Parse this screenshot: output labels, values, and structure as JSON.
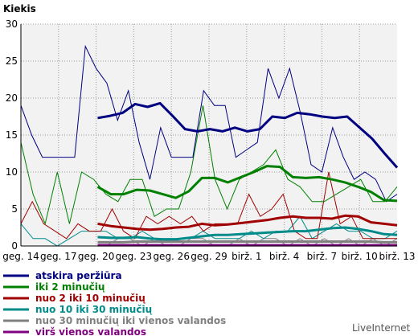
{
  "chart_data": {
    "type": "line",
    "title": "Kiekis",
    "ylim": [
      0,
      30
    ],
    "y_ticks": [
      0,
      5,
      10,
      15,
      20,
      25,
      30
    ],
    "x_tick_labels": [
      "geg. 14",
      "geg. 17",
      "geg. 20",
      "geg. 23",
      "geg. 26",
      "geg. 29",
      "birž. 1",
      "birž. 4",
      "birž. 7",
      "birž. 10",
      "birž. 13"
    ],
    "x_count": 50,
    "grid": true,
    "legend_position": "bottom-left",
    "brand": "LiveInternet",
    "series": [
      {
        "name": "atskira peržiūra",
        "color": "#000080",
        "values": [
          19,
          15,
          12,
          12,
          12,
          12,
          27,
          24,
          22,
          17,
          21,
          14,
          9,
          16,
          12,
          12,
          12,
          21,
          19,
          19,
          12,
          13,
          14,
          24,
          20,
          24,
          18,
          11,
          10,
          16,
          12,
          9,
          10,
          9,
          6,
          7
        ]
      },
      {
        "name": "iki 2 minučių",
        "color": "#008000",
        "values": [
          14,
          7,
          3,
          10,
          3,
          10,
          9,
          7,
          6,
          9,
          9,
          4,
          5,
          5,
          10,
          19,
          9,
          5,
          9,
          10,
          11,
          13,
          9,
          8,
          6,
          6,
          7,
          8,
          9,
          6,
          6,
          8
        ]
      },
      {
        "name": "nuo 2 iki 10 minučių",
        "color": "#a00000",
        "values": [
          3,
          6,
          3,
          2,
          1,
          3,
          2,
          2,
          5,
          2,
          1,
          4,
          3,
          4,
          3,
          4,
          2,
          3,
          3,
          3,
          7,
          4,
          5,
          7,
          2,
          1,
          1,
          10,
          3,
          4,
          1,
          1,
          1,
          1
        ]
      },
      {
        "name": "nuo 10 iki 30 minučių",
        "color": "#008b8b",
        "values": [
          3,
          1,
          1,
          0,
          1,
          2,
          2,
          2,
          1,
          1,
          2,
          1,
          1,
          1,
          1,
          2,
          1,
          1,
          1,
          2,
          1,
          2,
          2,
          4,
          1,
          2,
          3,
          2,
          2,
          1,
          1,
          2
        ]
      },
      {
        "name": "nuo 30 minučių iki vienos valandos",
        "color": "#808080",
        "values": [
          0,
          0,
          0,
          0,
          0,
          0,
          0,
          0,
          1,
          1,
          0,
          1,
          0,
          0,
          1,
          1,
          0,
          0,
          1,
          0,
          1,
          1,
          0,
          1,
          0,
          1,
          0,
          1,
          0,
          1,
          0,
          1
        ]
      },
      {
        "name": "virš vienos valandos",
        "color": "#800080",
        "values": [
          0,
          0,
          0,
          0,
          0,
          0,
          0,
          0,
          0,
          0,
          0,
          0,
          0,
          0,
          0,
          0,
          0,
          0,
          0,
          0,
          0,
          0,
          0,
          0,
          0,
          0,
          0,
          0,
          0,
          0,
          0,
          0
        ]
      }
    ],
    "trend_series": [
      {
        "name": "atskira peržiūra",
        "color": "#000080",
        "values": [
          17.3,
          17.6,
          18,
          19.2,
          18.8,
          19.3,
          17.6,
          15.8,
          15.5,
          15.8,
          15.5,
          16,
          15.5,
          15.8,
          17.5,
          17.3,
          18,
          17.8,
          17.5,
          17.3,
          17.5,
          16,
          14.5,
          12.5,
          10.6
        ]
      },
      {
        "name": "iki 2 minučių",
        "color": "#008000",
        "values": [
          8,
          7,
          7,
          7.6,
          7.5,
          7,
          6.5,
          7.4,
          9.2,
          9.2,
          8.6,
          9.3,
          10,
          10.8,
          10.7,
          9.3,
          9.2,
          9.3,
          9,
          8.6,
          8,
          7.3,
          6.2,
          6.1
        ]
      },
      {
        "name": "nuo 2 iki 10 minučių",
        "color": "#a00000",
        "values": [
          3,
          2.7,
          2.5,
          2.3,
          2.2,
          2.3,
          2.5,
          2.6,
          3,
          2.8,
          2.9,
          3.1,
          3.3,
          3.5,
          3.8,
          4,
          3.8,
          3.8,
          3.7,
          4.1,
          4,
          3.2,
          3,
          2.8
        ]
      },
      {
        "name": "nuo 10 iki 30 minučių",
        "color": "#008b8b",
        "values": [
          1.2,
          1.1,
          1.1,
          1.2,
          1,
          0.9,
          0.9,
          1.1,
          1.3,
          1.5,
          1.5,
          1.6,
          1.7,
          1.8,
          1.9,
          2,
          2,
          2.2,
          2.4,
          2.5,
          2.3,
          2,
          1.6,
          1.5
        ]
      },
      {
        "name": "nuo 30 minučių iki vienos valandos",
        "color": "#808080",
        "values": [
          0.5,
          0.5,
          0.5,
          0.6,
          0.6,
          0.6,
          0.6,
          0.6,
          0.6,
          0.6,
          0.6,
          0.6,
          0.6,
          0.6,
          0.6,
          0.6,
          0.6,
          0.6,
          0.6,
          0.6,
          0.6,
          0.6,
          0.5,
          0.5
        ]
      },
      {
        "name": "virš vienos valandos",
        "color": "#800080",
        "values": [
          0.1,
          0.1,
          0.1,
          0.1,
          0.1,
          0.1,
          0.1,
          0.1,
          0.1,
          0.1,
          0.1,
          0.1,
          0.1,
          0.1,
          0.1,
          0.1,
          0.1,
          0.1,
          0.1,
          0.1,
          0.1,
          0.1,
          0.1,
          0.1
        ]
      }
    ]
  }
}
